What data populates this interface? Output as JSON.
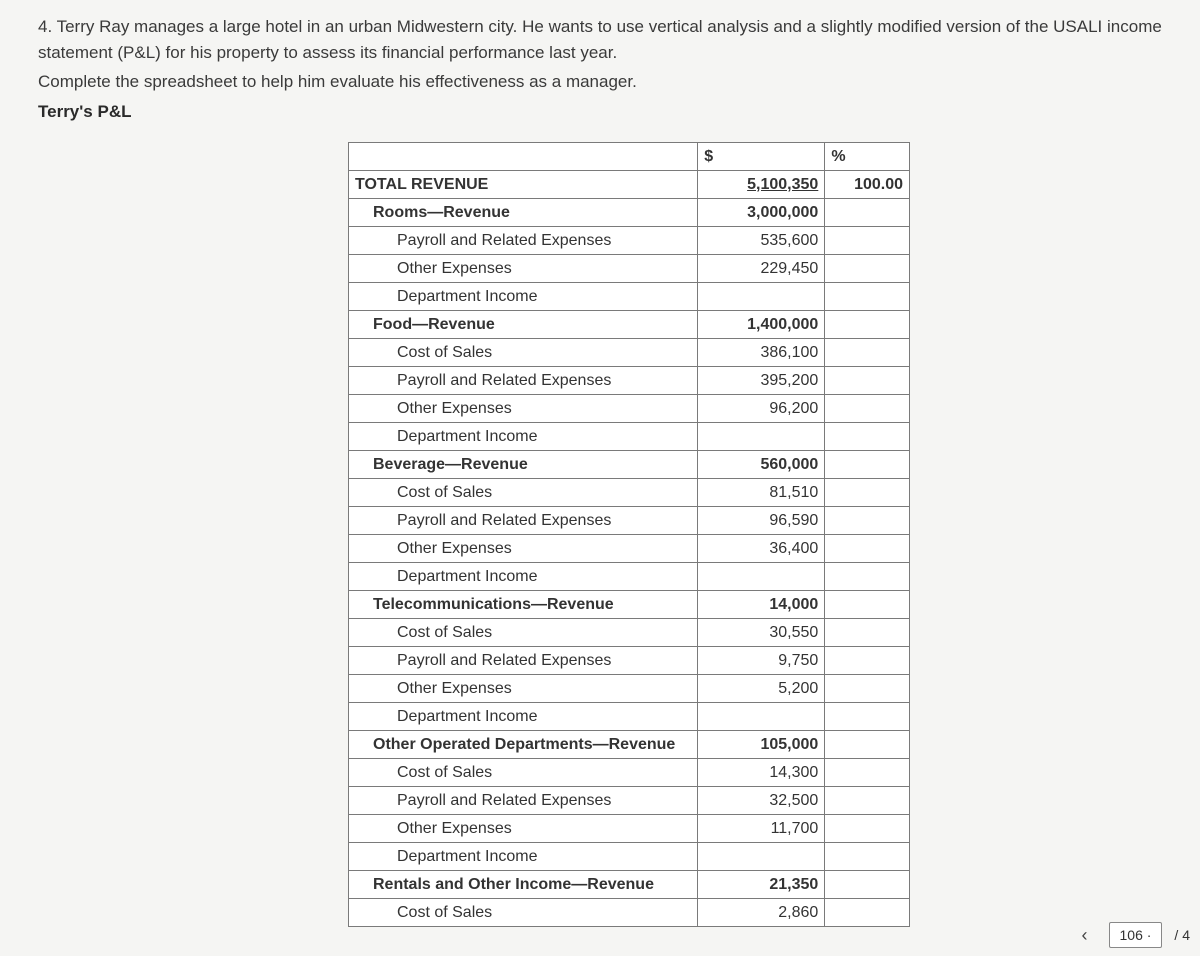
{
  "intro": {
    "question": "4. Terry Ray manages a large hotel in an urban Midwestern city. He wants to use vertical analysis and a slightly modified version of the USALI income statement (P&L) for his property to assess its financial performance last year.",
    "complete": "Complete the spreadsheet to help him evaluate his effectiveness as a manager.",
    "title": "Terry's P&L"
  },
  "table": {
    "header": {
      "col1": "",
      "col2": "$",
      "col3": "%"
    },
    "rows": [
      {
        "label": "TOTAL REVENUE",
        "dollar": "5,100,350",
        "pct": "100.00",
        "bold": true,
        "indent": 0,
        "underline_dollar": true
      },
      {
        "label": "Rooms—Revenue",
        "dollar": "3,000,000",
        "pct": "",
        "bold": true,
        "indent": 1
      },
      {
        "label": "Payroll and Related Expenses",
        "dollar": "535,600",
        "pct": "",
        "indent": 2
      },
      {
        "label": "Other Expenses",
        "dollar": "229,450",
        "pct": "",
        "indent": 2
      },
      {
        "label": "Department Income",
        "dollar": "",
        "pct": "",
        "indent": 2
      },
      {
        "label": "Food—Revenue",
        "dollar": "1,400,000",
        "pct": "",
        "bold": true,
        "indent": 1
      },
      {
        "label": "Cost of Sales",
        "dollar": "386,100",
        "pct": "",
        "indent": 2
      },
      {
        "label": "Payroll and Related Expenses",
        "dollar": "395,200",
        "pct": "",
        "indent": 2
      },
      {
        "label": "Other Expenses",
        "dollar": "96,200",
        "pct": "",
        "indent": 2
      },
      {
        "label": "Department Income",
        "dollar": "",
        "pct": "",
        "indent": 2
      },
      {
        "label": "Beverage—Revenue",
        "dollar": "560,000",
        "pct": "",
        "bold": true,
        "indent": 1
      },
      {
        "label": "Cost of Sales",
        "dollar": "81,510",
        "pct": "",
        "indent": 2
      },
      {
        "label": "Payroll and Related Expenses",
        "dollar": "96,590",
        "pct": "",
        "indent": 2
      },
      {
        "label": "Other Expenses",
        "dollar": "36,400",
        "pct": "",
        "indent": 2
      },
      {
        "label": "Department Income",
        "dollar": "",
        "pct": "",
        "indent": 2
      },
      {
        "label": "Telecommunications—Revenue",
        "dollar": "14,000",
        "pct": "",
        "bold": true,
        "indent": 1
      },
      {
        "label": "Cost of Sales",
        "dollar": "30,550",
        "pct": "",
        "indent": 2
      },
      {
        "label": "Payroll and Related Expenses",
        "dollar": "9,750",
        "pct": "",
        "indent": 2
      },
      {
        "label": "Other Expenses",
        "dollar": "5,200",
        "pct": "",
        "indent": 2
      },
      {
        "label": "Department Income",
        "dollar": "",
        "pct": "",
        "indent": 2
      },
      {
        "label": "Other Operated Departments—Revenue",
        "dollar": "105,000",
        "pct": "",
        "bold": true,
        "indent": 1
      },
      {
        "label": "Cost of Sales",
        "dollar": "14,300",
        "pct": "",
        "indent": 2
      },
      {
        "label": "Payroll and Related Expenses",
        "dollar": "32,500",
        "pct": "",
        "indent": 2
      },
      {
        "label": "Other Expenses",
        "dollar": "11,700",
        "pct": "",
        "indent": 2
      },
      {
        "label": "Department Income",
        "dollar": "",
        "pct": "",
        "indent": 2
      },
      {
        "label": "Rentals and Other Income—Revenue",
        "dollar": "21,350",
        "pct": "",
        "bold": true,
        "indent": 1
      },
      {
        "label": "Cost of Sales",
        "dollar": "2,860",
        "pct": "",
        "indent": 2
      }
    ]
  },
  "nav": {
    "chev": "‹",
    "page": "106",
    "sep": "·",
    "total": "/ 4"
  }
}
